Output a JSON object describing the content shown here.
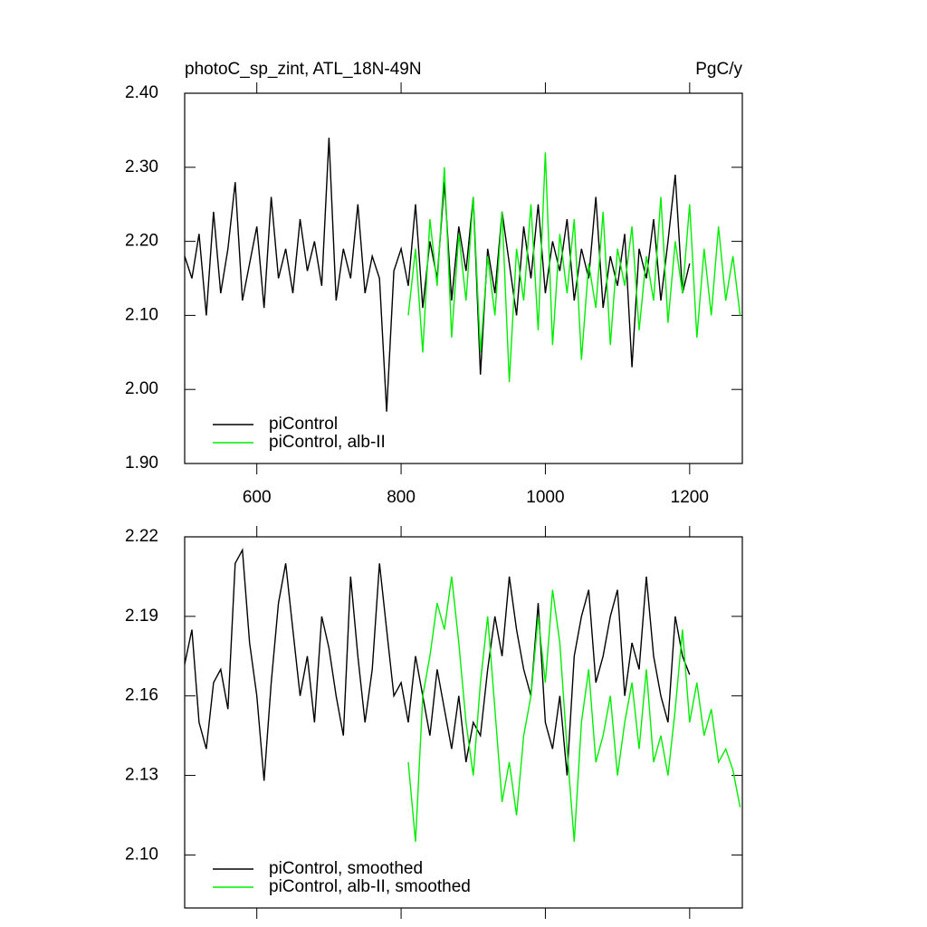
{
  "chart_data": [
    {
      "type": "line",
      "title": "photoC_sp_zint, ATL_18N-49N",
      "units": "PgC/y",
      "xlim": [
        500,
        1273
      ],
      "xticks": [
        600,
        800,
        1000,
        1200
      ],
      "xtick_labels": true,
      "ylim": [
        1.9,
        2.4
      ],
      "yticks": [
        {
          "value": 1.9,
          "label": "1.90"
        },
        {
          "value": 2.0,
          "label": "2.00"
        },
        {
          "value": 2.1,
          "label": "2.10"
        },
        {
          "value": 2.2,
          "label": "2.20"
        },
        {
          "value": 2.3,
          "label": "2.30"
        },
        {
          "value": 2.4,
          "label": "2.40"
        }
      ],
      "legend": "lower left",
      "series": [
        {
          "name": "piControl",
          "color": "#000000",
          "x": [
            500,
            510,
            520,
            530,
            540,
            550,
            560,
            570,
            580,
            590,
            600,
            610,
            620,
            630,
            640,
            650,
            660,
            670,
            680,
            690,
            700,
            710,
            720,
            730,
            740,
            750,
            760,
            770,
            780,
            790,
            800,
            810,
            820,
            830,
            840,
            850,
            860,
            870,
            880,
            890,
            900,
            910,
            920,
            930,
            940,
            950,
            960,
            970,
            980,
            990,
            1000,
            1010,
            1020,
            1030,
            1040,
            1050,
            1060,
            1070,
            1080,
            1090,
            1100,
            1110,
            1120,
            1130,
            1140,
            1150,
            1160,
            1170,
            1180,
            1190,
            1200
          ],
          "values": [
            2.18,
            2.15,
            2.21,
            2.1,
            2.24,
            2.13,
            2.19,
            2.28,
            2.12,
            2.17,
            2.22,
            2.11,
            2.26,
            2.15,
            2.19,
            2.13,
            2.23,
            2.16,
            2.2,
            2.14,
            2.34,
            2.12,
            2.19,
            2.15,
            2.25,
            2.13,
            2.18,
            2.15,
            1.97,
            2.16,
            2.19,
            2.14,
            2.25,
            2.11,
            2.2,
            2.15,
            2.28,
            2.12,
            2.22,
            2.16,
            2.26,
            2.02,
            2.19,
            2.13,
            2.24,
            2.17,
            2.1,
            2.22,
            2.15,
            2.25,
            2.13,
            2.2,
            2.16,
            2.23,
            2.12,
            2.19,
            2.15,
            2.26,
            2.11,
            2.18,
            2.14,
            2.21,
            2.03,
            2.19,
            2.15,
            2.23,
            2.12,
            2.2,
            2.29,
            2.13,
            2.17
          ]
        },
        {
          "name": "piControl, alb-II",
          "color": "#00ee00",
          "x": [
            810,
            820,
            830,
            840,
            850,
            860,
            870,
            880,
            890,
            900,
            910,
            920,
            930,
            940,
            950,
            960,
            970,
            980,
            990,
            1000,
            1010,
            1020,
            1030,
            1040,
            1050,
            1060,
            1070,
            1080,
            1090,
            1100,
            1110,
            1120,
            1130,
            1140,
            1150,
            1160,
            1170,
            1180,
            1190,
            1200,
            1210,
            1220,
            1230,
            1240,
            1250,
            1260,
            1270
          ],
          "values": [
            2.1,
            2.19,
            2.05,
            2.23,
            2.14,
            2.3,
            2.07,
            2.21,
            2.12,
            2.26,
            2.05,
            2.18,
            2.1,
            2.24,
            2.01,
            2.19,
            2.12,
            2.25,
            2.08,
            2.32,
            2.06,
            2.21,
            2.13,
            2.23,
            2.04,
            2.17,
            2.11,
            2.24,
            2.06,
            2.19,
            2.14,
            2.22,
            2.08,
            2.18,
            2.12,
            2.26,
            2.09,
            2.2,
            2.13,
            2.25,
            2.07,
            2.19,
            2.1,
            2.22,
            2.12,
            2.18,
            2.1
          ]
        }
      ]
    },
    {
      "type": "line",
      "xlim": [
        500,
        1273
      ],
      "xticks": [
        600,
        800,
        1000,
        1200
      ],
      "xtick_labels": false,
      "ylim": [
        2.08,
        2.22
      ],
      "yticks": [
        {
          "value": 2.1,
          "label": "2.10"
        },
        2.13,
        2.16,
        2.19,
        2.22
      ],
      "legend": "lower left",
      "series": [
        {
          "name": "piControl, smoothed",
          "color": "#000000",
          "x": [
            500,
            510,
            520,
            530,
            540,
            550,
            560,
            570,
            580,
            590,
            600,
            610,
            620,
            630,
            640,
            650,
            660,
            670,
            680,
            690,
            700,
            710,
            720,
            730,
            740,
            750,
            760,
            770,
            780,
            790,
            800,
            810,
            820,
            830,
            840,
            850,
            860,
            870,
            880,
            890,
            900,
            910,
            920,
            930,
            940,
            950,
            960,
            970,
            980,
            990,
            1000,
            1010,
            1020,
            1030,
            1040,
            1050,
            1060,
            1070,
            1080,
            1090,
            1100,
            1110,
            1120,
            1130,
            1140,
            1150,
            1160,
            1170,
            1180,
            1190,
            1200
          ],
          "values": [
            2.172,
            2.185,
            2.15,
            2.14,
            2.165,
            2.17,
            2.155,
            2.21,
            2.215,
            2.18,
            2.16,
            2.128,
            2.165,
            2.195,
            2.21,
            2.185,
            2.16,
            2.175,
            2.15,
            2.19,
            2.178,
            2.16,
            2.145,
            2.205,
            2.175,
            2.15,
            2.17,
            2.21,
            2.185,
            2.16,
            2.165,
            2.15,
            2.175,
            2.16,
            2.145,
            2.17,
            2.155,
            2.14,
            2.16,
            2.135,
            2.15,
            2.145,
            2.17,
            2.19,
            2.175,
            2.205,
            2.185,
            2.17,
            2.16,
            2.195,
            2.15,
            2.14,
            2.16,
            2.13,
            2.175,
            2.19,
            2.2,
            2.165,
            2.175,
            2.19,
            2.2,
            2.16,
            2.18,
            2.17,
            2.205,
            2.175,
            2.16,
            2.15,
            2.19,
            2.175,
            2.168
          ]
        },
        {
          "name": "piControl, alb-II, smoothed",
          "color": "#00ee00",
          "x": [
            810,
            820,
            830,
            840,
            850,
            860,
            870,
            880,
            890,
            900,
            910,
            920,
            930,
            940,
            950,
            960,
            970,
            980,
            990,
            1000,
            1010,
            1020,
            1030,
            1040,
            1050,
            1060,
            1070,
            1080,
            1090,
            1100,
            1110,
            1120,
            1130,
            1140,
            1150,
            1160,
            1170,
            1180,
            1190,
            1200,
            1210,
            1220,
            1230,
            1240,
            1250,
            1260,
            1270
          ],
          "values": [
            2.135,
            2.105,
            2.16,
            2.175,
            2.195,
            2.185,
            2.205,
            2.18,
            2.15,
            2.13,
            2.165,
            2.19,
            2.155,
            2.12,
            2.135,
            2.115,
            2.145,
            2.16,
            2.19,
            2.165,
            2.2,
            2.18,
            2.14,
            2.105,
            2.15,
            2.17,
            2.135,
            2.145,
            2.16,
            2.13,
            2.15,
            2.165,
            2.14,
            2.17,
            2.135,
            2.145,
            2.13,
            2.155,
            2.185,
            2.15,
            2.165,
            2.145,
            2.155,
            2.135,
            2.14,
            2.132,
            2.118
          ]
        }
      ]
    }
  ]
}
